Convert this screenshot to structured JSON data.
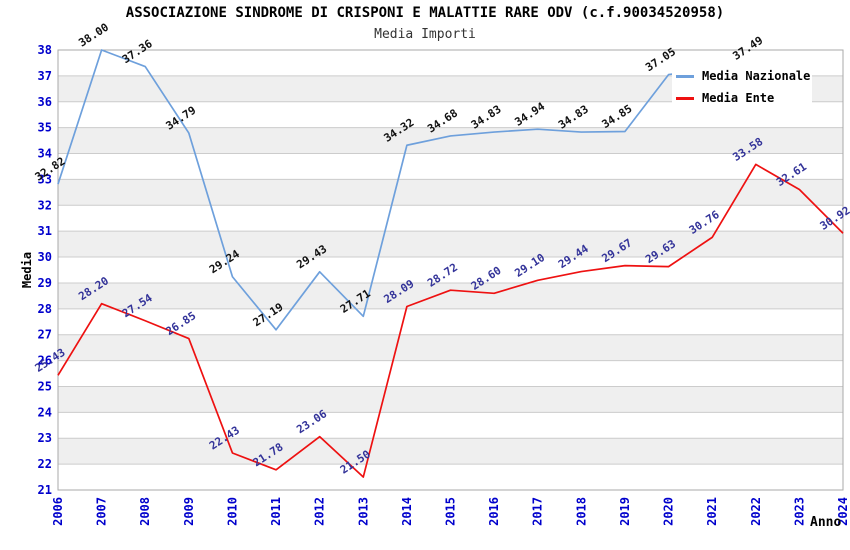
{
  "chart_data": {
    "type": "line",
    "title": "ASSOCIAZIONE SINDROME DI CRISPONI E MALATTIE RARE ODV (c.f.90034520958)",
    "subtitle": "Media Importi",
    "xlabel": "Anno",
    "ylabel": "Media",
    "ylim": [
      21,
      38
    ],
    "y_ticks": [
      21,
      22,
      23,
      24,
      25,
      26,
      27,
      28,
      29,
      30,
      31,
      32,
      33,
      34,
      35,
      36,
      37,
      38
    ],
    "x_categories": [
      2006,
      2007,
      2008,
      2009,
      2010,
      2011,
      2012,
      2013,
      2014,
      2015,
      2016,
      2017,
      2018,
      2019,
      2020,
      2021,
      2022,
      2023,
      2024
    ],
    "grid": true,
    "striped_bands": true,
    "legend_position": "top-right-overlay",
    "colors": {
      "grid_line": "#cccccc",
      "stripe_fill": "#efefef",
      "plot_border": "#aaaaaa",
      "axis_tick_text": "#0000cc",
      "background": "#ffffff"
    },
    "series": [
      {
        "name": "Media Nazionale",
        "color": "#6EA0DC",
        "label_color": "#111111",
        "points": [
          {
            "year": 2006,
            "value": 32.82,
            "label": "32.82"
          },
          {
            "year": 2007,
            "value": 38.0,
            "label": "38.00"
          },
          {
            "year": 2008,
            "value": 37.36,
            "label": "37.36"
          },
          {
            "year": 2009,
            "value": 34.79,
            "label": "34.79"
          },
          {
            "year": 2010,
            "value": 29.24,
            "label": "29.24"
          },
          {
            "year": 2011,
            "value": 27.19,
            "label": "27.19"
          },
          {
            "year": 2012,
            "value": 29.43,
            "label": "29.43"
          },
          {
            "year": 2013,
            "value": 27.71,
            "label": "27.71"
          },
          {
            "year": 2014,
            "value": 34.32,
            "label": "34.32"
          },
          {
            "year": 2015,
            "value": 34.68,
            "label": "34.68"
          },
          {
            "year": 2016,
            "value": 34.83,
            "label": "34.83"
          },
          {
            "year": 2017,
            "value": 34.94,
            "label": "34.94"
          },
          {
            "year": 2018,
            "value": 34.83,
            "label": "34.83"
          },
          {
            "year": 2019,
            "value": 34.85,
            "label": "34.85"
          },
          {
            "year": 2020,
            "value": 37.05,
            "label": "37.05"
          },
          {
            "year": 2022,
            "value": 37.49,
            "label": "37.49"
          }
        ]
      },
      {
        "name": "Media Ente",
        "color": "#EE1111",
        "label_color": "#333399",
        "points": [
          {
            "year": 2006,
            "value": 25.43,
            "label": "25.43"
          },
          {
            "year": 2007,
            "value": 28.2,
            "label": "28.20"
          },
          {
            "year": 2008,
            "value": 27.54,
            "label": "27.54"
          },
          {
            "year": 2009,
            "value": 26.85,
            "label": "26.85"
          },
          {
            "year": 2010,
            "value": 22.43,
            "label": "22.43"
          },
          {
            "year": 2011,
            "value": 21.78,
            "label": "21.78"
          },
          {
            "year": 2012,
            "value": 23.06,
            "label": "23.06"
          },
          {
            "year": 2013,
            "value": 21.5,
            "label": "21.50"
          },
          {
            "year": 2014,
            "value": 28.09,
            "label": "28.09"
          },
          {
            "year": 2015,
            "value": 28.72,
            "label": "28.72"
          },
          {
            "year": 2016,
            "value": 28.6,
            "label": "28.60"
          },
          {
            "year": 2017,
            "value": 29.1,
            "label": "29.10"
          },
          {
            "year": 2018,
            "value": 29.44,
            "label": "29.44"
          },
          {
            "year": 2019,
            "value": 29.67,
            "label": "29.67"
          },
          {
            "year": 2020,
            "value": 29.63,
            "label": "29.63"
          },
          {
            "year": 2021,
            "value": 30.76,
            "label": "30.76"
          },
          {
            "year": 2022,
            "value": 33.58,
            "label": "33.58"
          },
          {
            "year": 2023,
            "value": 32.61,
            "label": "32.61"
          },
          {
            "year": 2024,
            "value": 30.92,
            "label": "30.92"
          }
        ]
      }
    ]
  }
}
